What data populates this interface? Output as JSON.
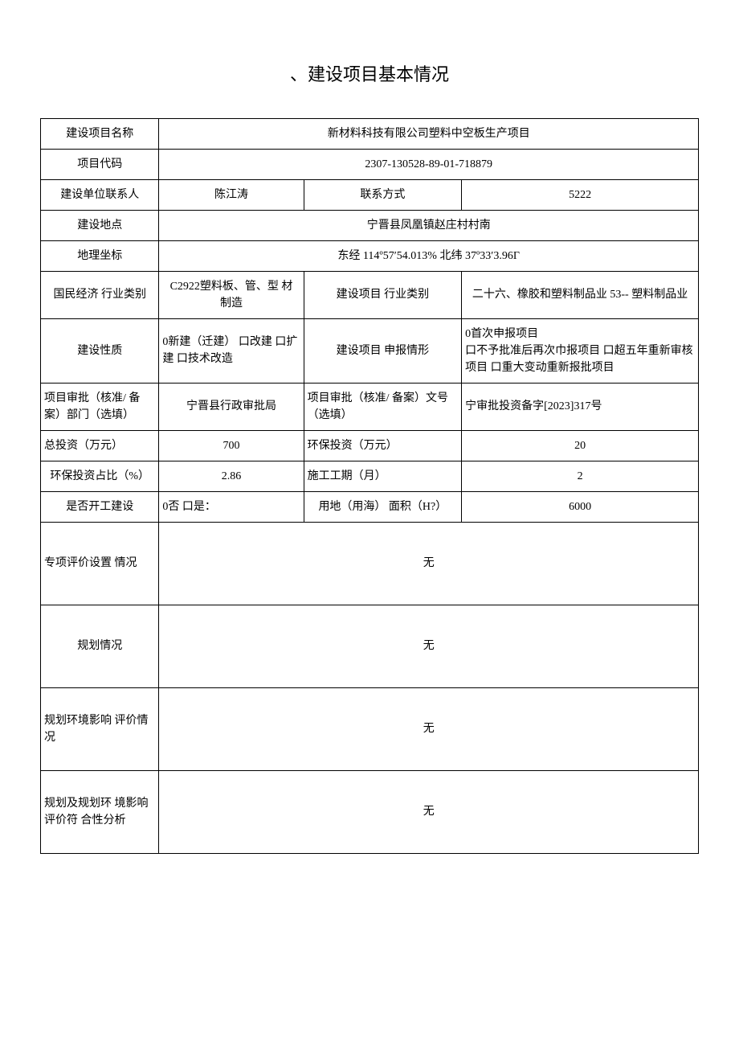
{
  "title": "、建设项目基本情况",
  "rows": {
    "project_name_label": "建设项目名称",
    "project_name_value": "新材料科技有限公司塑料中空板生产项目",
    "project_code_label": "项目代码",
    "project_code_value": "2307-130528-89-01-718879",
    "contact_person_label": "建设单位联系人",
    "contact_person_value": "陈江涛",
    "contact_method_label": "联系方式",
    "contact_method_value": "5222",
    "location_label": "建设地点",
    "location_value": "宁晋县凤凰镇赵庄村村南",
    "coords_label": "地理坐标",
    "coords_value": "东经 114º57′54.013% 北纬 37º33′3.96Γ",
    "econ_category_label": "国民经济 行业类别",
    "econ_category_value": "C2922塑料板、管、型 材 制造",
    "industry_category_label": "建设项目 行业类别",
    "industry_category_value": "二十六、橡胶和塑料制品业 53-- 塑料制品业",
    "build_nature_label": "建设性质",
    "build_nature_value": "0新建（迁建） 口改建 口扩建 口技术改造",
    "declare_situation_label": "建设项目 申报情形",
    "declare_situation_value": "0首次申报项目\n口不予批准后再次巾报项目 口超五年重新审核项目 口重大变动重新报批项目",
    "approval_dept_label": "项目审批（核准/ 备案）部门（选填）",
    "approval_dept_value": "宁晋县行政审批局",
    "approval_no_label": "项目审批（核准/ 备案）文号（选填）",
    "approval_no_value": "宁审批投资备字[2023]317号",
    "total_invest_label": "总投资（万元）",
    "total_invest_value": "700",
    "env_invest_label": "环保投资（万元）",
    "env_invest_value": "20",
    "env_ratio_label": "环保投资占比（%）",
    "env_ratio_value": "2.86",
    "duration_label": "施工工期（月）",
    "duration_value": "2",
    "started_label": "是否开工建设",
    "started_value": "0否 口是：",
    "land_area_label": "用地（用海） 面积（H?）",
    "land_area_value": "6000",
    "special_eval_label": "专项评价设置 情况",
    "special_eval_value": "无",
    "planning_label": "规划情况",
    "planning_value": "无",
    "planning_env_label": "规划环境影响 评价情况",
    "planning_env_value": "无",
    "planning_compliance_label": "规划及规划环 境影响评价符 合性分析",
    "planning_compliance_value": "无"
  }
}
